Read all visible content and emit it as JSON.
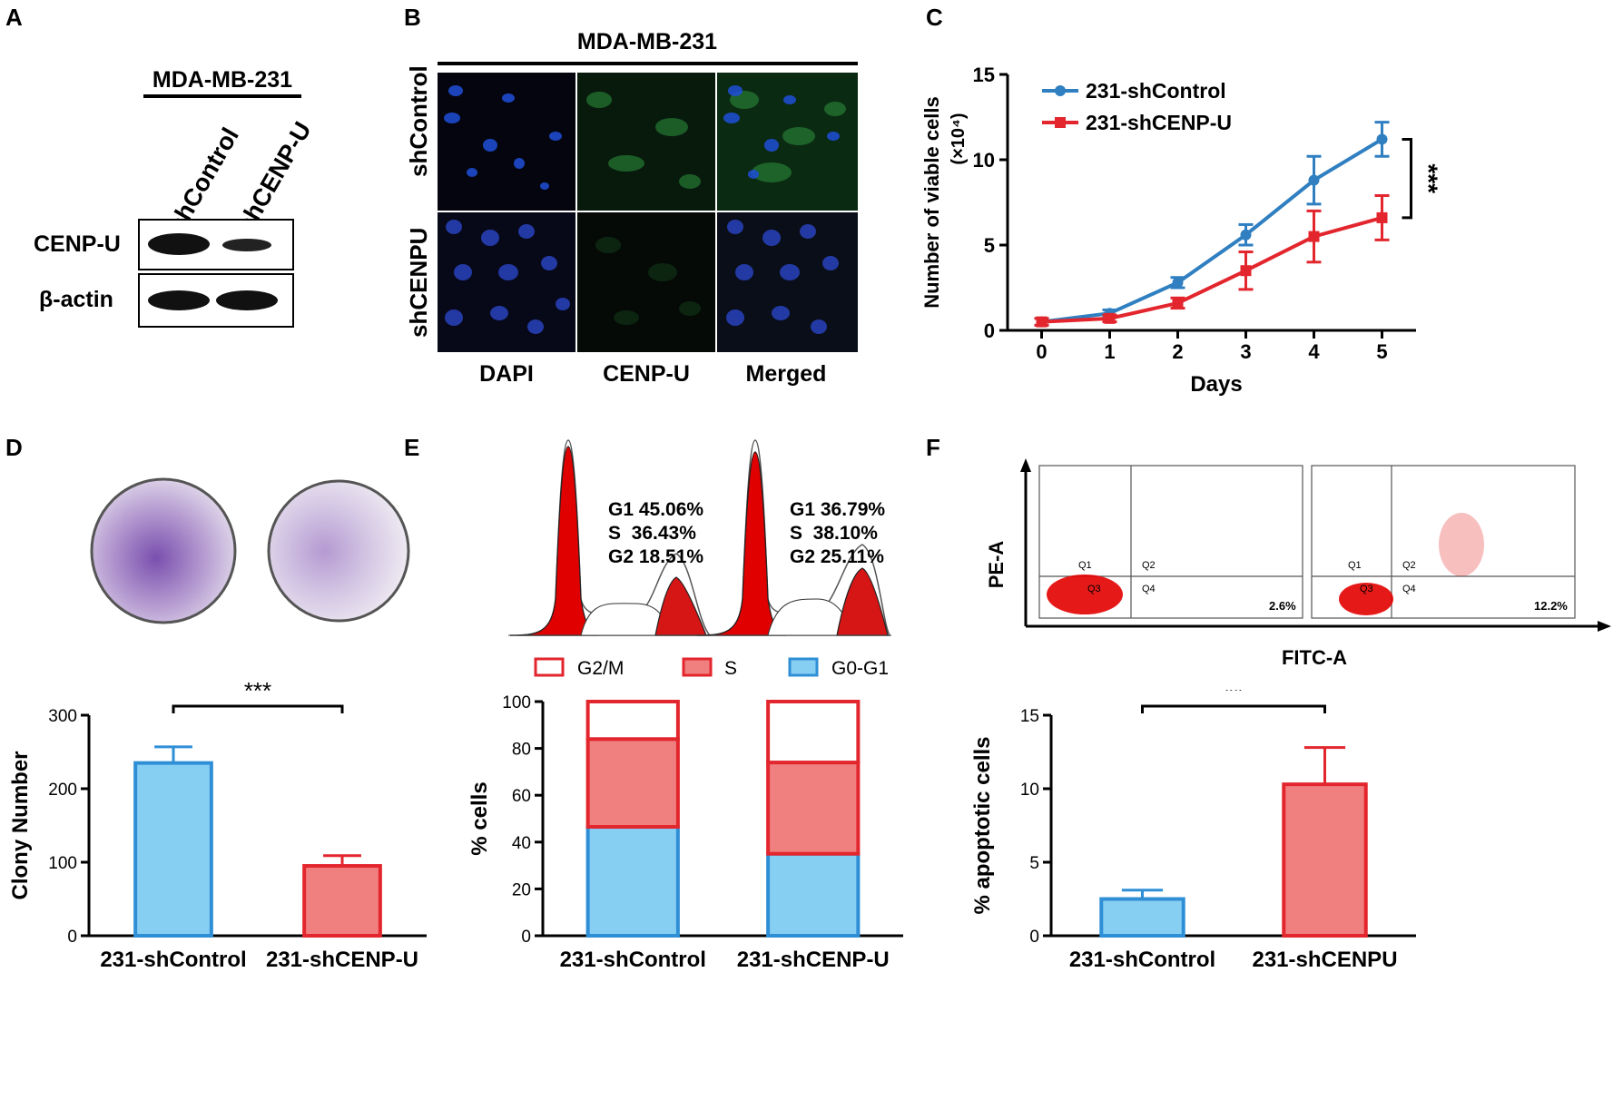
{
  "panels": {
    "A": {
      "letter": "A",
      "cell_line": "MDA-MB-231",
      "lanes": [
        "shControl",
        "shCENP-U"
      ],
      "rows": [
        "CENP-U",
        "β-actin"
      ]
    },
    "B": {
      "letter": "B",
      "cell_line": "MDA-MB-231",
      "row_labels": [
        "shControl",
        "shCENPU"
      ],
      "col_labels": [
        "DAPI",
        "CENP-U",
        "Merged"
      ]
    },
    "C": {
      "letter": "C",
      "significance": "***"
    },
    "D": {
      "letter": "D",
      "significance": "***"
    },
    "E": {
      "letter": "E",
      "histograms": [
        {
          "lines": [
            "G1 45.06%",
            "S  36.43%",
            "G2 18.51%"
          ]
        },
        {
          "lines": [
            "G1 36.79%",
            "S  38.10%",
            "G2 25.11%"
          ]
        }
      ],
      "legend": [
        "G2/M",
        "S",
        "G0-G1"
      ]
    },
    "F": {
      "letter": "F",
      "flow": {
        "xlabel": "FITC-A",
        "ylabel": "PE-A",
        "quadrants": [
          "Q1",
          "Q2",
          "Q3",
          "Q4"
        ],
        "percentages": [
          "2.6%",
          "12.2%"
        ]
      },
      "significance": "**"
    }
  },
  "chart_data": [
    {
      "id": "C",
      "type": "line",
      "x": [
        0,
        1,
        2,
        3,
        4,
        5
      ],
      "series": [
        {
          "name": "231-shControl",
          "color": "#2f7fc1",
          "values": [
            0.5,
            1.0,
            2.8,
            5.6,
            8.8,
            11.2
          ],
          "errors": [
            0.2,
            0.2,
            0.3,
            0.6,
            1.4,
            1.0
          ]
        },
        {
          "name": "231-shCENP-U",
          "color": "#e3262d",
          "values": [
            0.5,
            0.7,
            1.6,
            3.5,
            5.5,
            6.6
          ],
          "errors": [
            0.2,
            0.2,
            0.3,
            1.1,
            1.5,
            1.3
          ]
        }
      ],
      "xlabel": "Days",
      "ylabel": "Number of viable cells",
      "ylabel_unit": "(×10⁴)",
      "xticks": [
        "0",
        "1",
        "2",
        "3",
        "4",
        "5"
      ],
      "yticks": [
        "0",
        "5",
        "10",
        "15"
      ],
      "ylim": [
        0,
        15
      ],
      "legend_position": "top-left"
    },
    {
      "id": "D",
      "type": "bar",
      "categories": [
        "231-shControl",
        "231-shCENP-U"
      ],
      "values": [
        235,
        95
      ],
      "errors": [
        22,
        14
      ],
      "fill": [
        "#87cef3",
        "#f08080"
      ],
      "stroke": [
        "#2f8fd6",
        "#e3262d"
      ],
      "ylabel": "Clony Number",
      "yticks": [
        "0",
        "100",
        "200",
        "300"
      ],
      "ylim": [
        0,
        300
      ]
    },
    {
      "id": "E",
      "type": "bar",
      "stacked": true,
      "categories": [
        "231-shControl",
        "231-shCENP-U"
      ],
      "series": [
        {
          "name": "G0-G1",
          "values": [
            46.5,
            35.0
          ],
          "fill": "#87cef3",
          "stroke": "#2f8fd6"
        },
        {
          "name": "S",
          "values": [
            37.5,
            39.0
          ],
          "fill": "#f08080",
          "stroke": "#e3262d"
        },
        {
          "name": "G2/M",
          "values": [
            16.0,
            26.0
          ],
          "fill": "#ffffff",
          "stroke": "#e3262d"
        }
      ],
      "ylabel": "% cells",
      "yticks": [
        "0",
        "20",
        "40",
        "60",
        "80",
        "100"
      ],
      "ylim": [
        0,
        100
      ]
    },
    {
      "id": "F",
      "type": "bar",
      "categories": [
        "231-shControl",
        "231-shCENPU"
      ],
      "values": [
        2.5,
        10.3
      ],
      "errors": [
        0.6,
        2.5
      ],
      "fill": [
        "#87cef3",
        "#f08080"
      ],
      "stroke": [
        "#2f8fd6",
        "#e3262d"
      ],
      "ylabel": "% apoptotic cells",
      "yticks": [
        "0",
        "5",
        "10",
        "15"
      ],
      "ylim": [
        0,
        15
      ]
    }
  ]
}
